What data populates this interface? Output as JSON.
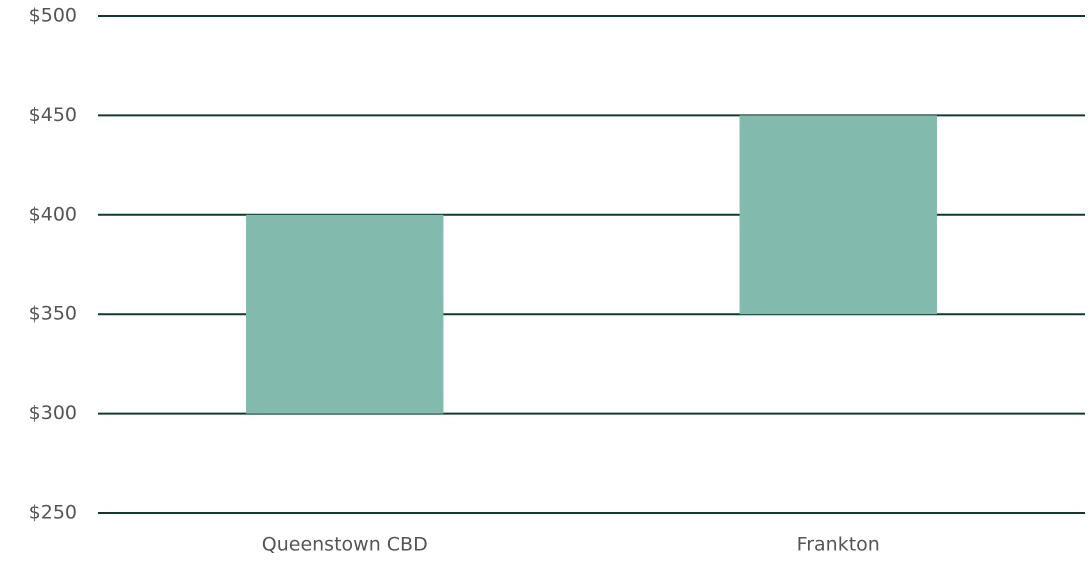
{
  "chart_data": {
    "type": "range_bar",
    "categories": [
      "Queenstown CBD",
      "Frankton"
    ],
    "low": [
      300,
      350
    ],
    "high": [
      400,
      450
    ],
    "color": "#82bbad",
    "ylim": [
      250,
      500
    ],
    "yticks": [
      {
        "value": 250,
        "label": "$250"
      },
      {
        "value": 300,
        "label": "$300"
      },
      {
        "value": 350,
        "label": "$350"
      },
      {
        "value": 400,
        "label": "$400"
      },
      {
        "value": 450,
        "label": "$450"
      },
      {
        "value": 500,
        "label": "$500"
      }
    ],
    "grid": true
  }
}
